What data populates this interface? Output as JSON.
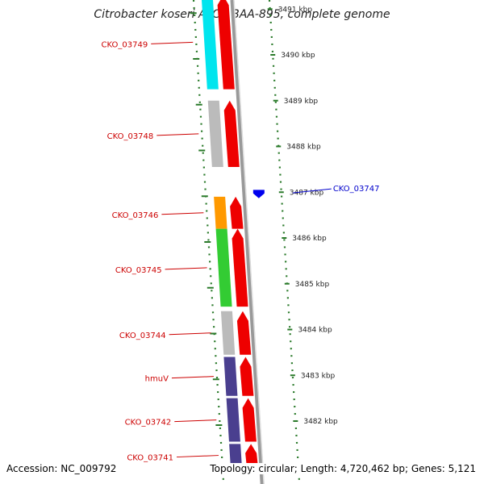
{
  "title": "Citrobacter koseri ATCC BAA-895, complete genome",
  "footer": {
    "accession": "Accession: NC_009792",
    "info": "Topology: circular; Length: 4,720,462 bp; Genes: 5,121"
  },
  "colors": {
    "forward_cds": "#ee0000",
    "label_forward": "#cc0000",
    "label_reverse": "#0000cc",
    "reverse_marker": "#0000ee",
    "backbone": "#999999",
    "tick": "#2a7a2a",
    "cog_grey": "#bbbbbb",
    "cog_cyan": "#00e5ee",
    "cog_green": "#33cc33",
    "cog_orange": "#ff9900",
    "cog_purple": "#4a3f8f"
  },
  "ticks": [
    {
      "label": "3491 kbp",
      "kbp": 3491
    },
    {
      "label": "3490 kbp",
      "kbp": 3490
    },
    {
      "label": "3489 kbp",
      "kbp": 3489
    },
    {
      "label": "3488 kbp",
      "kbp": 3488
    },
    {
      "label": "3487 kbp",
      "kbp": 3487
    },
    {
      "label": "3486 kbp",
      "kbp": 3486
    },
    {
      "label": "3485 kbp",
      "kbp": 3485
    },
    {
      "label": "3484 kbp",
      "kbp": 3484
    },
    {
      "label": "3483 kbp",
      "kbp": 3483
    },
    {
      "label": "3482 kbp",
      "kbp": 3482
    }
  ],
  "genes": [
    {
      "name": "CKO_03749",
      "strand": "forward",
      "start_kbp": 3489.25,
      "end_kbp": 3491.3,
      "cog": "cog_cyan"
    },
    {
      "name": "CKO_03748",
      "strand": "forward",
      "start_kbp": 3487.55,
      "end_kbp": 3489.0,
      "cog": "cog_grey"
    },
    {
      "name": "CKO_03747",
      "strand": "reverse",
      "start_kbp": 3486.92,
      "end_kbp": 3487.05,
      "cog": ""
    },
    {
      "name": "CKO_03746",
      "strand": "forward",
      "start_kbp": 3486.2,
      "end_kbp": 3486.9,
      "cog": "cog_orange"
    },
    {
      "name": "CKO_03745",
      "strand": "forward",
      "start_kbp": 3484.5,
      "end_kbp": 3486.2,
      "cog": "cog_green"
    },
    {
      "name": "CKO_03744",
      "strand": "forward",
      "start_kbp": 3483.45,
      "end_kbp": 3484.4,
      "cog": "cog_grey"
    },
    {
      "name": "hmuV",
      "strand": "forward",
      "start_kbp": 3482.55,
      "end_kbp": 3483.4,
      "cog": "cog_purple"
    },
    {
      "name": "CKO_03742",
      "strand": "forward",
      "start_kbp": 3481.55,
      "end_kbp": 3482.5,
      "cog": "cog_purple"
    },
    {
      "name": "CKO_03741",
      "strand": "forward",
      "start_kbp": 3481.0,
      "end_kbp": 3481.5,
      "cog": "cog_purple"
    }
  ]
}
